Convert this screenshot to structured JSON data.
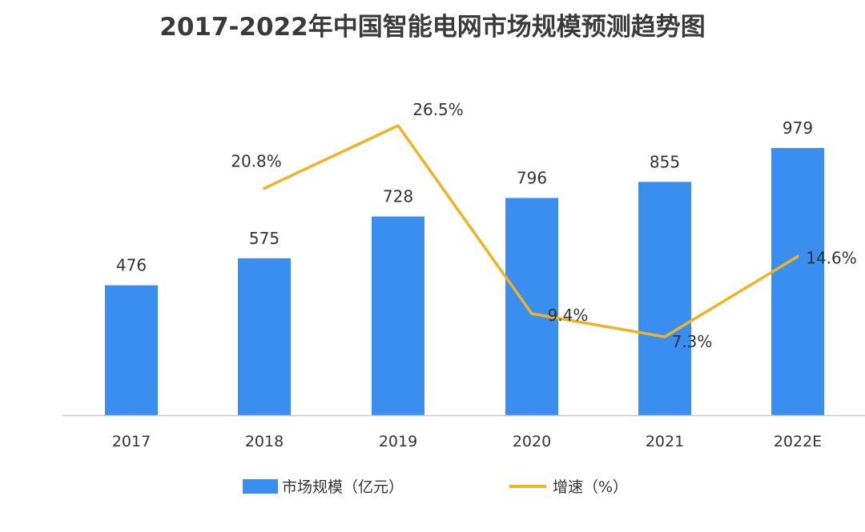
{
  "chart_data": {
    "type": "bar",
    "title": "2017-2022年中国智能电网市场规模预测趋势图",
    "categories": [
      "2017",
      "2018",
      "2019",
      "2020",
      "2021",
      "2022E"
    ],
    "series": [
      {
        "name": "市场规模（亿元）",
        "type": "bar",
        "values": [
          476,
          575,
          728,
          796,
          855,
          979
        ],
        "labels": [
          "476",
          "575",
          "728",
          "796",
          "855",
          "979"
        ],
        "color": "#3a8ef0"
      },
      {
        "name": "增速（%）",
        "type": "line",
        "values": [
          null,
          20.8,
          26.5,
          9.4,
          7.3,
          14.6
        ],
        "labels": [
          "",
          "20.8%",
          "26.5%",
          "9.4%",
          "7.3%",
          "14.6%"
        ],
        "color": "#f0b323"
      }
    ],
    "xlabel": "",
    "ylabel": "",
    "legend_position": "bottom",
    "grid": false
  }
}
